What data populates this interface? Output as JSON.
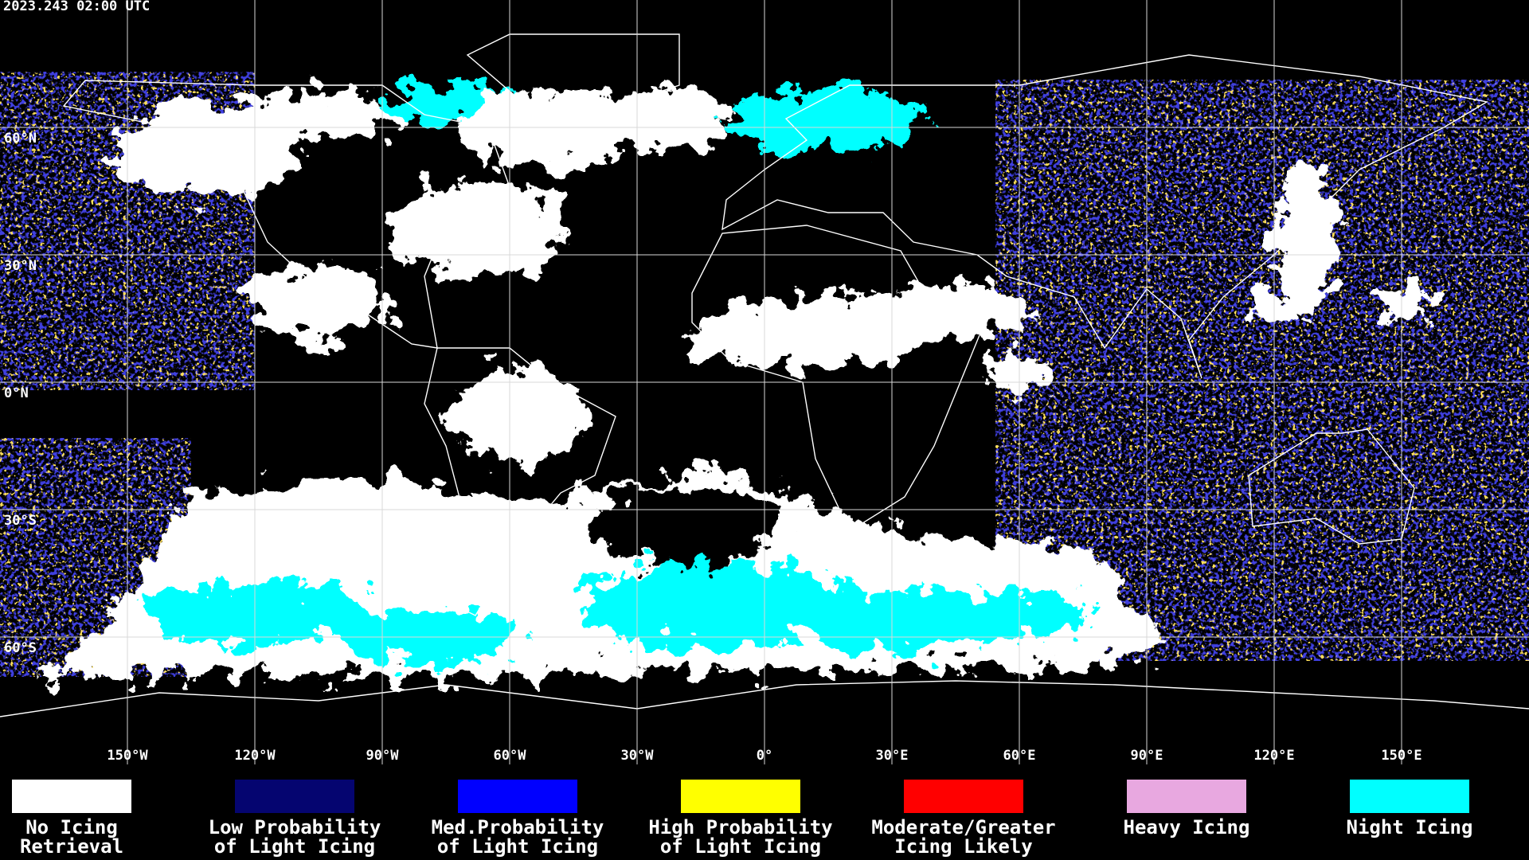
{
  "timestamp": "2023.243 02:00 UTC",
  "map": {
    "lon_ticks": [
      {
        "value": -150,
        "label": "150°W"
      },
      {
        "value": -120,
        "label": "120°W"
      },
      {
        "value": -90,
        "label": "90°W"
      },
      {
        "value": -60,
        "label": "60°W"
      },
      {
        "value": -30,
        "label": "30°W"
      },
      {
        "value": 0,
        "label": "0°"
      },
      {
        "value": 30,
        "label": "30°E"
      },
      {
        "value": 60,
        "label": "60°E"
      },
      {
        "value": 90,
        "label": "90°E"
      },
      {
        "value": 120,
        "label": "120°E"
      },
      {
        "value": 150,
        "label": "150°E"
      }
    ],
    "lat_ticks": [
      {
        "value": 60,
        "label": "60°N"
      },
      {
        "value": 30,
        "label": "30°N"
      },
      {
        "value": 0,
        "label": "0°N"
      },
      {
        "value": -30,
        "label": "30°S"
      },
      {
        "value": -60,
        "label": "60°S"
      }
    ]
  },
  "legend": [
    {
      "color": "#ffffff",
      "label": [
        "No Icing",
        "Retrieval"
      ]
    },
    {
      "color": "#050570",
      "label": [
        "Low Probability",
        "of Light Icing"
      ]
    },
    {
      "color": "#0000ff",
      "label": [
        "Med.Probability",
        "of Light Icing"
      ]
    },
    {
      "color": "#ffff00",
      "label": [
        "High Probability",
        "of Light Icing"
      ]
    },
    {
      "color": "#ff0000",
      "label": [
        "Moderate/Greater",
        "Icing Likely"
      ]
    },
    {
      "color": "#e8a8e0",
      "label": [
        "Heavy Icing"
      ]
    },
    {
      "color": "#00ffff",
      "label": [
        "Night Icing"
      ]
    }
  ]
}
